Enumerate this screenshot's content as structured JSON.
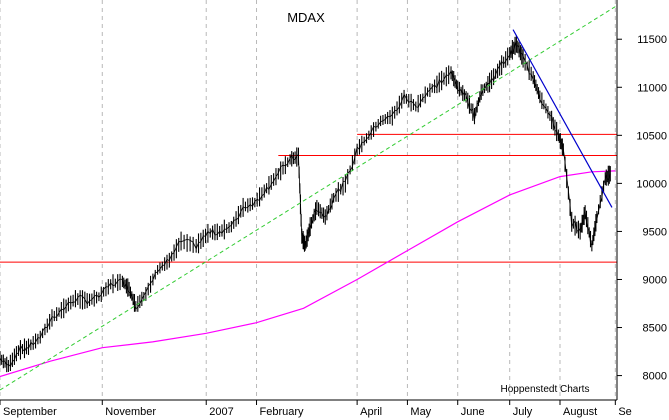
{
  "chart_data": {
    "type": "line",
    "title": "MDAX",
    "credit": "Hoppenstedt Charts",
    "x_range": [
      "2006-09-01",
      "2007-09-04"
    ],
    "ylim": [
      7850,
      11700
    ],
    "y_ticks": [
      8000,
      8500,
      9000,
      9500,
      10000,
      10500,
      11000,
      11500
    ],
    "y_tick_labels": [
      "8000",
      "8500",
      "9000",
      "9500",
      "10000",
      "10500",
      "11000",
      "11500"
    ],
    "x_ticks": [
      {
        "date": "2006-09-01",
        "label": "September"
      },
      {
        "date": "2006-11-01",
        "label": "November"
      },
      {
        "date": "2007-01-02",
        "label": "2007"
      },
      {
        "date": "2007-02-01",
        "label": "February"
      },
      {
        "date": "2007-04-02",
        "label": "April"
      },
      {
        "date": "2007-05-02",
        "label": "May"
      },
      {
        "date": "2007-06-01",
        "label": "June"
      },
      {
        "date": "2007-07-02",
        "label": "July"
      },
      {
        "date": "2007-08-01",
        "label": "August"
      },
      {
        "date": "2007-09-03",
        "label": "Se"
      }
    ],
    "grid": "vertical-dashed",
    "price_series": {
      "x": [
        "2006-09-01",
        "2006-09-06",
        "2006-09-12",
        "2006-09-18",
        "2006-09-25",
        "2006-10-02",
        "2006-10-09",
        "2006-10-16",
        "2006-10-23",
        "2006-10-30",
        "2006-11-06",
        "2006-11-13",
        "2006-11-17",
        "2006-11-21",
        "2006-11-27",
        "2006-12-04",
        "2006-12-11",
        "2006-12-18",
        "2006-12-27",
        "2007-01-03",
        "2007-01-10",
        "2007-01-17",
        "2007-01-24",
        "2007-01-31",
        "2007-02-07",
        "2007-02-14",
        "2007-02-21",
        "2007-02-26",
        "2007-02-28",
        "2007-03-02",
        "2007-03-05",
        "2007-03-09",
        "2007-03-14",
        "2007-03-19",
        "2007-03-26",
        "2007-04-02",
        "2007-04-09",
        "2007-04-16",
        "2007-04-23",
        "2007-04-30",
        "2007-05-07",
        "2007-05-14",
        "2007-05-21",
        "2007-05-28",
        "2007-06-01",
        "2007-06-06",
        "2007-06-11",
        "2007-06-15",
        "2007-06-20",
        "2007-06-26",
        "2007-07-02",
        "2007-07-06",
        "2007-07-10",
        "2007-07-16",
        "2007-07-20",
        "2007-07-26",
        "2007-07-31",
        "2007-08-03",
        "2007-08-08",
        "2007-08-13",
        "2007-08-16",
        "2007-08-20",
        "2007-08-23",
        "2007-08-28",
        "2007-08-31"
      ],
      "y": [
        8180,
        8100,
        8260,
        8300,
        8400,
        8600,
        8700,
        8800,
        8780,
        8820,
        8950,
        8980,
        8900,
        8720,
        8850,
        9100,
        9200,
        9400,
        9350,
        9480,
        9500,
        9550,
        9750,
        9800,
        9950,
        10100,
        10250,
        10280,
        9450,
        9350,
        9550,
        9750,
        9650,
        9850,
        10000,
        10350,
        10500,
        10650,
        10700,
        10900,
        10800,
        10950,
        11050,
        11150,
        11000,
        10900,
        10700,
        10950,
        11050,
        11200,
        11350,
        11450,
        11300,
        11100,
        10900,
        10700,
        10500,
        10350,
        9600,
        9500,
        9700,
        9350,
        9650,
        10050,
        10100
      ]
    },
    "moving_average": {
      "color": "#ff00ff",
      "x": [
        "2006-09-01",
        "2006-10-01",
        "2006-11-01",
        "2006-12-01",
        "2007-01-02",
        "2007-02-01",
        "2007-03-01",
        "2007-04-02",
        "2007-05-02",
        "2007-06-01",
        "2007-07-02",
        "2007-08-01",
        "2007-08-20",
        "2007-09-03"
      ],
      "y": [
        7990,
        8150,
        8290,
        8350,
        8440,
        8550,
        8700,
        9000,
        9300,
        9600,
        9880,
        10070,
        10120,
        10130
      ]
    },
    "support_resistance_lines": {
      "color": "#ff0000",
      "levels": [
        {
          "y": 9180,
          "from": "2006-09-01",
          "to": "2007-09-04"
        },
        {
          "y": 10290,
          "from": "2007-02-14",
          "to": "2007-09-04"
        },
        {
          "y": 10510,
          "from": "2007-04-02",
          "to": "2007-09-04"
        }
      ]
    },
    "uptrend_line": {
      "color": "#33cc33",
      "style": "dashed",
      "points": [
        {
          "x": "2006-09-01",
          "y": 7850
        },
        {
          "x": "2007-09-04",
          "y": 11850
        }
      ]
    },
    "downtrend_line": {
      "color": "#0000cc",
      "points": [
        {
          "x": "2007-07-04",
          "y": 11600
        },
        {
          "x": "2007-09-01",
          "y": 9750
        }
      ]
    }
  }
}
